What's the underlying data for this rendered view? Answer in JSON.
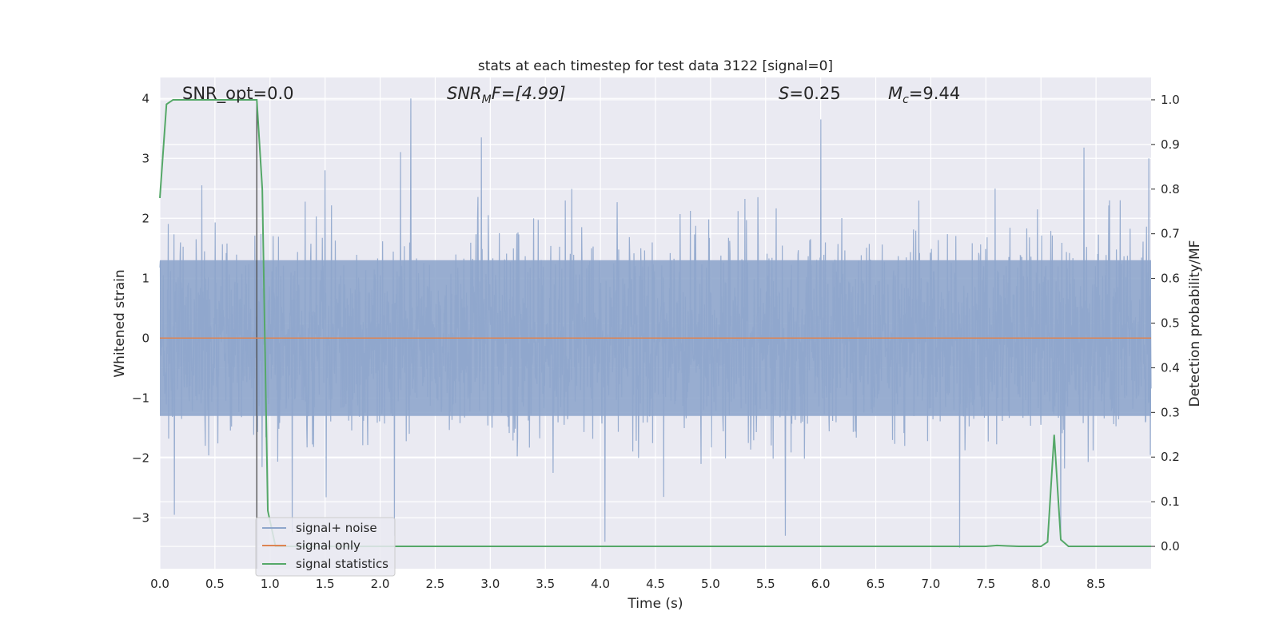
{
  "chart_data": {
    "type": "line",
    "title": "stats at each timestep for test data 3122 [signal=0]",
    "xlabel": "Time (s)",
    "ylabel_left": "Whitened strain",
    "ylabel_right": "Detection probability/MF",
    "xlim": [
      0.0,
      9.0
    ],
    "ylim_left": [
      -3.85,
      4.35
    ],
    "ylim_right": [
      -0.05,
      1.05
    ],
    "xticks": [
      "0.0",
      "0.5",
      "1.0",
      "1.5",
      "2.0",
      "2.5",
      "3.0",
      "3.5",
      "4.0",
      "4.5",
      "5.0",
      "5.5",
      "6.0",
      "6.5",
      "7.0",
      "7.5",
      "8.0",
      "8.5"
    ],
    "yticks_left": [
      "4",
      "3",
      "2",
      "1",
      "0",
      "−1",
      "−2",
      "−3"
    ],
    "yticks_right": [
      "1.0",
      "0.9",
      "0.8",
      "0.7",
      "0.6",
      "0.5",
      "0.4",
      "0.3",
      "0.2",
      "0.1",
      "0.0"
    ],
    "grid": true,
    "legend_placement": "lower-left",
    "vertical_marker_x": 0.88,
    "annotations": {
      "snr_opt": "SNR_opt=0.0",
      "snr_mf_main": "SNR",
      "snr_mf_sub": "M",
      "snr_mf_rest": "F=[4.99]",
      "s_main": "S",
      "s_rest": "=0.25",
      "mc_main": "M",
      "mc_sub": "c",
      "mc_rest": "=9.44"
    },
    "series": [
      {
        "name": "signal+ noise",
        "axis": "left",
        "color": "#8fa6cc",
        "description_range": [
          -3.5,
          4.0
        ],
        "typical_band": [
          -1.3,
          1.3
        ],
        "peaks": [
          [
            2.28,
            4.0
          ],
          [
            6.0,
            3.65
          ],
          [
            2.92,
            3.35
          ],
          [
            8.98,
            3.0
          ],
          [
            1.5,
            2.8
          ],
          [
            0.38,
            2.55
          ],
          [
            7.26,
            -3.5
          ],
          [
            4.04,
            -3.4
          ],
          [
            5.68,
            -3.3
          ],
          [
            2.13,
            -3.3
          ],
          [
            1.2,
            -3.25
          ],
          [
            8.18,
            -3.35
          ],
          [
            0.13,
            -2.95
          ],
          [
            3.57,
            -2.25
          ]
        ]
      },
      {
        "name": "signal only",
        "axis": "left",
        "color": "#dd8452",
        "x": [
          0.0,
          9.0
        ],
        "y": [
          0.0,
          0.0
        ]
      },
      {
        "name": "signal statistics",
        "axis": "right",
        "color": "#55a868",
        "x": [
          0.0,
          0.06,
          0.12,
          0.2,
          0.3,
          0.5,
          0.7,
          0.82,
          0.88,
          0.93,
          0.98,
          1.05,
          1.2,
          2.0,
          3.0,
          4.0,
          5.0,
          6.0,
          7.0,
          7.5,
          7.6,
          7.7,
          7.8,
          8.0,
          8.06,
          8.12,
          8.18,
          8.25,
          8.5,
          9.0
        ],
        "y": [
          0.78,
          0.99,
          1.0,
          1.0,
          1.0,
          1.0,
          1.0,
          1.0,
          1.0,
          0.8,
          0.08,
          0.0,
          0.0,
          0.0,
          0.0,
          0.0,
          0.0,
          0.0,
          0.0,
          0.0,
          0.002,
          0.001,
          0.0,
          0.0,
          0.01,
          0.25,
          0.015,
          0.0,
          0.0,
          0.0
        ]
      }
    ]
  }
}
